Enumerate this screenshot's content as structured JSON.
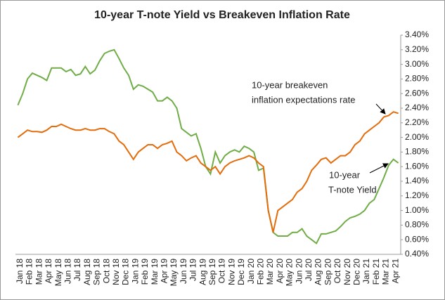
{
  "chart_data": {
    "type": "line",
    "title": "10-year T-note Yield vs Breakeven Inflation Rate",
    "categories": [
      "Jan 18",
      null,
      "Feb 18",
      null,
      "Mar 18",
      null,
      "Apr 18",
      null,
      "May 18",
      null,
      "Jun 18",
      null,
      "Jul 18",
      null,
      "Aug 18",
      null,
      "Sep 18",
      null,
      "Oct 18",
      null,
      "Nov 18",
      null,
      "Dec 18",
      null,
      "Jan 19",
      null,
      "Feb 19",
      null,
      "Mar 19",
      null,
      "Apr 19",
      null,
      "May 19",
      null,
      "Jun 19",
      null,
      "Jul 19",
      null,
      "Aug 19",
      null,
      "Sep 19",
      null,
      "Oct 19",
      null,
      "Nov 19",
      null,
      "Dec 19",
      null,
      "Jan 20",
      null,
      "Feb 20",
      null,
      "Mar 20",
      null,
      "Apr 20",
      null,
      "May 20",
      null,
      "Jun 20",
      null,
      "Jul 20",
      null,
      "Aug 20",
      null,
      "Sep 20",
      null,
      "Oct 20",
      null,
      "Nov 20",
      null,
      "Dec 20",
      null,
      "Jan 21",
      null,
      "Feb 21",
      null,
      "Mar 21",
      null,
      "Apr 21",
      null
    ],
    "series": [
      {
        "color": "#70ad47",
        "values": [
          2.44,
          2.6,
          2.8,
          2.88,
          2.85,
          2.82,
          2.78,
          2.95,
          2.95,
          2.95,
          2.9,
          2.93,
          2.85,
          2.87,
          2.97,
          2.87,
          2.92,
          3.05,
          3.15,
          3.18,
          3.2,
          3.08,
          2.95,
          2.85,
          2.66,
          2.72,
          2.7,
          2.66,
          2.62,
          2.5,
          2.5,
          2.55,
          2.5,
          2.4,
          2.12,
          2.07,
          2.02,
          2.05,
          1.85,
          1.6,
          1.5,
          1.8,
          1.65,
          1.75,
          1.8,
          1.83,
          1.8,
          1.88,
          1.85,
          1.8,
          1.55,
          1.58,
          1.0,
          0.7,
          0.65,
          0.65,
          0.65,
          0.7,
          0.7,
          0.75,
          0.65,
          0.6,
          0.55,
          0.68,
          0.68,
          0.7,
          0.72,
          0.78,
          0.85,
          0.9,
          0.92,
          0.95,
          1.0,
          1.1,
          1.15,
          1.3,
          1.45,
          1.62,
          1.7,
          1.65
        ]
      },
      {
        "color": "#e46c0a",
        "values": [
          2.0,
          2.05,
          2.1,
          2.08,
          2.08,
          2.07,
          2.1,
          2.15,
          2.15,
          2.18,
          2.15,
          2.12,
          2.1,
          2.1,
          2.12,
          2.1,
          2.1,
          2.12,
          2.12,
          2.08,
          2.05,
          1.95,
          1.9,
          1.8,
          1.7,
          1.8,
          1.85,
          1.9,
          1.9,
          1.85,
          1.9,
          1.92,
          1.95,
          1.8,
          1.75,
          1.68,
          1.72,
          1.75,
          1.65,
          1.6,
          1.55,
          1.6,
          1.5,
          1.6,
          1.65,
          1.68,
          1.7,
          1.72,
          1.75,
          1.72,
          1.65,
          1.6,
          1.0,
          0.7,
          1.0,
          1.05,
          1.1,
          1.15,
          1.25,
          1.3,
          1.4,
          1.55,
          1.62,
          1.7,
          1.72,
          1.65,
          1.7,
          1.75,
          1.75,
          1.8,
          1.9,
          1.95,
          2.05,
          2.1,
          2.15,
          2.2,
          2.28,
          2.3,
          2.35,
          2.33
        ]
      }
    ],
    "ylim": [
      0.4,
      3.4
    ],
    "yticks": [
      {
        "value": 0.4,
        "label": "0.40%"
      },
      {
        "value": 0.6,
        "label": "0.60%"
      },
      {
        "value": 0.8,
        "label": "0.80%"
      },
      {
        "value": 1.0,
        "label": "1.00%"
      },
      {
        "value": 1.2,
        "label": "1.20%"
      },
      {
        "value": 1.4,
        "label": "1.40%"
      },
      {
        "value": 1.6,
        "label": "1.60%"
      },
      {
        "value": 1.8,
        "label": "1.80%"
      },
      {
        "value": 2.0,
        "label": "2.00%"
      },
      {
        "value": 2.2,
        "label": "2.20%"
      },
      {
        "value": 2.4,
        "label": "2.40%"
      },
      {
        "value": 2.6,
        "label": "2.60%"
      },
      {
        "value": 2.8,
        "label": "2.80%"
      },
      {
        "value": 3.0,
        "label": "3.00%"
      },
      {
        "value": 3.2,
        "label": "3.20%"
      },
      {
        "value": 3.4,
        "label": "3.40%"
      }
    ],
    "annotations": [
      [
        "10-year breakeven",
        "inflation expectations rate"
      ],
      [
        "10-year",
        "T-note Yield"
      ]
    ]
  }
}
